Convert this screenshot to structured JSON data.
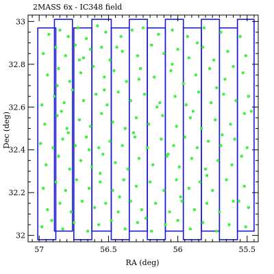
{
  "chart_data": {
    "type": "scatter",
    "title": "2MASS 6x - IC348 field",
    "xlabel": "RA (deg)",
    "ylabel": "Dec (deg)",
    "xlim": [
      57.08,
      55.42
    ],
    "ylim": [
      31.97,
      33.03
    ],
    "x_inverted": true,
    "grid": false,
    "x_ticks": [
      57,
      56.5,
      56,
      55.5
    ],
    "x_tick_labels": [
      "57",
      "56.5",
      "56",
      "55.5"
    ],
    "y_ticks": [
      32,
      32.2,
      32.4,
      32.6,
      32.8,
      33
    ],
    "y_tick_labels": [
      "32",
      "32.2",
      "32.4",
      "32.6",
      "32.8",
      "33"
    ],
    "footprint_color": "#1a1ad6",
    "point_color": "#33ff33",
    "footprints": [
      {
        "ra_min": 56.88,
        "ra_max": 57.01,
        "dec_min": 31.98,
        "dec_max": 32.97
      },
      {
        "ra_min": 56.76,
        "ra_max": 56.89,
        "dec_min": 32.02,
        "dec_max": 33.01
      },
      {
        "ra_min": 56.62,
        "ra_max": 56.75,
        "dec_min": 31.98,
        "dec_max": 32.97
      },
      {
        "ra_min": 56.48,
        "ra_max": 56.62,
        "dec_min": 32.02,
        "dec_max": 33.01
      },
      {
        "ra_min": 56.35,
        "ra_max": 56.48,
        "dec_min": 31.98,
        "dec_max": 32.97
      },
      {
        "ra_min": 56.22,
        "ra_max": 56.35,
        "dec_min": 32.02,
        "dec_max": 33.01
      },
      {
        "ra_min": 56.09,
        "ra_max": 56.22,
        "dec_min": 31.98,
        "dec_max": 32.97
      },
      {
        "ra_min": 55.96,
        "ra_max": 56.09,
        "dec_min": 32.02,
        "dec_max": 33.01
      },
      {
        "ra_min": 55.83,
        "ra_max": 55.96,
        "dec_min": 31.98,
        "dec_max": 32.97
      },
      {
        "ra_min": 55.7,
        "ra_max": 55.83,
        "dec_min": 32.02,
        "dec_max": 33.01
      },
      {
        "ra_min": 55.57,
        "ra_max": 55.7,
        "dec_min": 31.98,
        "dec_max": 32.97
      },
      {
        "ra_min": 55.45,
        "ra_max": 55.57,
        "dec_min": 32.02,
        "dec_max": 33.01
      }
    ],
    "points": [
      [
        56.93,
        32.94
      ],
      [
        56.85,
        32.96
      ],
      [
        56.79,
        32.93
      ],
      [
        56.72,
        32.97
      ],
      [
        56.66,
        32.92
      ],
      [
        56.58,
        32.98
      ],
      [
        56.52,
        32.95
      ],
      [
        56.41,
        32.93
      ],
      [
        56.33,
        32.96
      ],
      [
        56.25,
        32.97
      ],
      [
        56.14,
        32.94
      ],
      [
        56.04,
        32.96
      ],
      [
        55.93,
        32.93
      ],
      [
        55.81,
        32.97
      ],
      [
        55.69,
        32.95
      ],
      [
        55.55,
        32.93
      ],
      [
        56.97,
        32.85
      ],
      [
        56.88,
        32.88
      ],
      [
        56.81,
        32.84
      ],
      [
        56.74,
        32.89
      ],
      [
        56.68,
        32.83
      ],
      [
        56.63,
        32.87
      ],
      [
        56.55,
        32.88
      ],
      [
        56.49,
        32.82
      ],
      [
        56.4,
        32.86
      ],
      [
        56.29,
        32.84
      ],
      [
        56.19,
        32.89
      ],
      [
        56.1,
        32.85
      ],
      [
        56.0,
        32.87
      ],
      [
        55.92,
        32.83
      ],
      [
        55.82,
        32.88
      ],
      [
        55.74,
        32.82
      ],
      [
        55.64,
        32.86
      ],
      [
        55.51,
        32.84
      ],
      [
        56.94,
        32.75
      ],
      [
        56.86,
        32.78
      ],
      [
        56.78,
        32.72
      ],
      [
        56.7,
        32.76
      ],
      [
        56.61,
        32.79
      ],
      [
        56.53,
        32.74
      ],
      [
        56.46,
        32.77
      ],
      [
        56.37,
        32.72
      ],
      [
        56.27,
        32.78
      ],
      [
        56.17,
        32.74
      ],
      [
        56.05,
        32.77
      ],
      [
        55.96,
        32.71
      ],
      [
        55.87,
        32.75
      ],
      [
        55.77,
        32.78
      ],
      [
        55.66,
        32.73
      ],
      [
        55.53,
        32.76
      ],
      [
        56.98,
        32.61
      ],
      [
        56.89,
        32.65
      ],
      [
        56.82,
        32.62
      ],
      [
        56.76,
        32.68
      ],
      [
        56.68,
        32.63
      ],
      [
        56.59,
        32.66
      ],
      [
        56.51,
        32.61
      ],
      [
        56.43,
        32.67
      ],
      [
        56.34,
        32.63
      ],
      [
        56.24,
        32.66
      ],
      [
        56.13,
        32.62
      ],
      [
        56.02,
        32.65
      ],
      [
        55.94,
        32.61
      ],
      [
        55.85,
        32.67
      ],
      [
        55.76,
        32.62
      ],
      [
        55.67,
        32.66
      ],
      [
        55.58,
        32.63
      ],
      [
        55.49,
        32.65
      ],
      [
        56.96,
        32.52
      ],
      [
        56.87,
        32.56
      ],
      [
        56.8,
        32.5
      ],
      [
        56.71,
        32.54
      ],
      [
        56.63,
        32.51
      ],
      [
        56.55,
        32.57
      ],
      [
        56.47,
        32.53
      ],
      [
        56.38,
        32.5
      ],
      [
        56.3,
        32.55
      ],
      [
        56.21,
        32.52
      ],
      [
        56.11,
        32.56
      ],
      [
        56.01,
        32.51
      ],
      [
        55.91,
        32.55
      ],
      [
        55.83,
        32.5
      ],
      [
        55.73,
        32.54
      ],
      [
        55.62,
        32.52
      ],
      [
        55.52,
        32.57
      ],
      [
        56.99,
        32.43
      ],
      [
        56.9,
        32.41
      ],
      [
        56.83,
        32.45
      ],
      [
        56.74,
        32.42
      ],
      [
        56.66,
        32.46
      ],
      [
        56.57,
        32.41
      ],
      [
        56.49,
        32.44
      ],
      [
        56.4,
        32.42
      ],
      [
        56.31,
        32.46
      ],
      [
        56.22,
        32.41
      ],
      [
        56.12,
        32.45
      ],
      [
        56.03,
        32.42
      ],
      [
        55.95,
        32.46
      ],
      [
        55.86,
        32.41
      ],
      [
        55.78,
        32.44
      ],
      [
        55.69,
        32.42
      ],
      [
        55.59,
        32.45
      ],
      [
        55.5,
        32.41
      ],
      [
        56.95,
        32.33
      ],
      [
        56.86,
        32.37
      ],
      [
        56.78,
        32.31
      ],
      [
        56.7,
        32.35
      ],
      [
        56.62,
        32.32
      ],
      [
        56.54,
        32.38
      ],
      [
        56.45,
        32.34
      ],
      [
        56.36,
        32.31
      ],
      [
        56.28,
        32.36
      ],
      [
        56.18,
        32.33
      ],
      [
        56.08,
        32.37
      ],
      [
        55.99,
        32.32
      ],
      [
        55.9,
        32.36
      ],
      [
        55.8,
        32.31
      ],
      [
        55.71,
        32.35
      ],
      [
        55.61,
        32.33
      ],
      [
        55.54,
        32.37
      ],
      [
        56.97,
        32.22
      ],
      [
        56.88,
        32.25
      ],
      [
        56.81,
        32.21
      ],
      [
        56.73,
        32.26
      ],
      [
        56.64,
        32.22
      ],
      [
        56.56,
        32.25
      ],
      [
        56.47,
        32.21
      ],
      [
        56.39,
        32.26
      ],
      [
        56.3,
        32.23
      ],
      [
        56.2,
        32.25
      ],
      [
        56.1,
        32.21
      ],
      [
        56.01,
        32.26
      ],
      [
        55.92,
        32.22
      ],
      [
        55.84,
        32.25
      ],
      [
        55.75,
        32.21
      ],
      [
        55.65,
        32.26
      ],
      [
        55.52,
        32.23
      ],
      [
        56.94,
        32.12
      ],
      [
        56.85,
        32.15
      ],
      [
        56.77,
        32.11
      ],
      [
        56.69,
        32.16
      ],
      [
        56.6,
        32.13
      ],
      [
        56.52,
        32.15
      ],
      [
        56.43,
        32.11
      ],
      [
        56.34,
        32.16
      ],
      [
        56.26,
        32.12
      ],
      [
        56.16,
        32.15
      ],
      [
        56.06,
        32.11
      ],
      [
        55.97,
        32.16
      ],
      [
        55.88,
        32.12
      ],
      [
        55.79,
        32.15
      ],
      [
        55.7,
        32.11
      ],
      [
        55.6,
        32.16
      ],
      [
        55.49,
        32.13
      ],
      [
        56.98,
        32.04
      ],
      [
        56.91,
        32.07
      ],
      [
        56.83,
        32.03
      ],
      [
        56.75,
        32.06
      ],
      [
        56.65,
        32.02
      ],
      [
        56.57,
        32.05
      ],
      [
        56.48,
        32.07
      ],
      [
        56.38,
        32.03
      ],
      [
        56.29,
        32.06
      ],
      [
        56.19,
        32.02
      ],
      [
        56.09,
        32.05
      ],
      [
        56.0,
        32.07
      ],
      [
        55.91,
        32.03
      ],
      [
        55.82,
        32.06
      ],
      [
        55.72,
        32.02
      ],
      [
        55.63,
        32.05
      ],
      [
        55.51,
        32.04
      ],
      [
        56.87,
        32.7
      ],
      [
        56.84,
        32.58
      ],
      [
        56.79,
        32.48
      ],
      [
        56.71,
        32.82
      ],
      [
        56.64,
        32.4
      ],
      [
        56.56,
        32.29
      ],
      [
        56.53,
        32.68
      ],
      [
        56.44,
        32.88
      ],
      [
        56.42,
        32.18
      ],
      [
        56.32,
        32.48
      ],
      [
        56.28,
        32.73
      ],
      [
        56.23,
        32.08
      ],
      [
        56.15,
        32.6
      ],
      [
        56.07,
        32.38
      ],
      [
        56.04,
        32.8
      ],
      [
        55.98,
        32.18
      ],
      [
        55.89,
        32.58
      ],
      [
        55.86,
        32.9
      ],
      [
        55.79,
        32.28
      ],
      [
        55.72,
        32.69
      ],
      [
        55.68,
        32.47
      ],
      [
        55.6,
        32.79
      ],
      [
        55.56,
        32.16
      ],
      [
        55.47,
        32.58
      ]
    ]
  }
}
